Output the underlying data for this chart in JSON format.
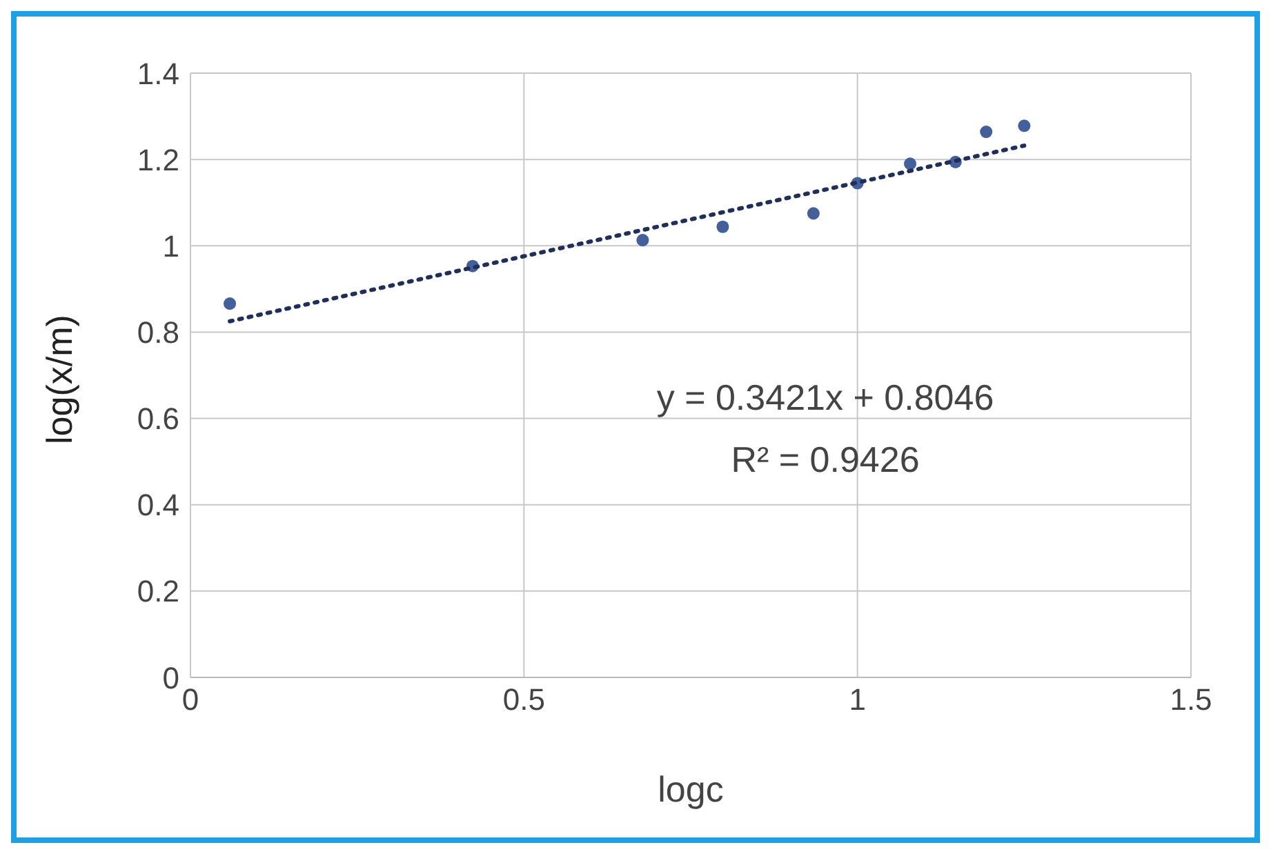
{
  "chart_data": {
    "type": "scatter",
    "xlabel": "logc",
    "ylabel": "log(x/m)",
    "xlim": [
      0,
      1.5
    ],
    "xticks": [
      0,
      0.5,
      1,
      1.5
    ],
    "ylim": [
      0,
      1.4
    ],
    "yticks": [
      0,
      0.2,
      0.4,
      0.6,
      0.8,
      1,
      1.2,
      1.4
    ],
    "grid": true,
    "marker": "circle",
    "series": [
      {
        "color": "#44609a",
        "x": [
          0.059,
          0.423,
          0.678,
          0.798,
          0.934,
          1.0,
          1.079,
          1.147,
          1.193,
          1.25
        ],
        "values": [
          0.866,
          0.953,
          1.013,
          1.044,
          1.075,
          1.145,
          1.19,
          1.194,
          1.264,
          1.278
        ]
      },
      {
        "type": "line",
        "color": "#1f2f5a",
        "line_style": "dotted",
        "marker": "none",
        "x": [
          0.059,
          1.25
        ],
        "values": [
          0.825,
          1.232
        ]
      }
    ],
    "annotations": [
      "y = 0.3421x + 0.8046",
      "R² = 0.9426"
    ]
  }
}
